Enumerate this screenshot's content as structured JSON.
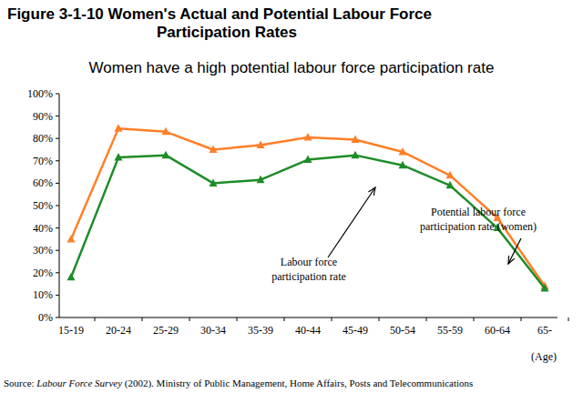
{
  "chart_data": {
    "type": "line",
    "title": [
      "Figure 3-1-10 Women's Actual and Potential Labour Force",
      "Participation Rates"
    ],
    "subtitle": "Women have a high potential labour force participation rate",
    "x_label": "(Age)",
    "categories": [
      "15-19",
      "20-24",
      "25-29",
      "30-34",
      "35-39",
      "40-44",
      "45-49",
      "50-54",
      "55-59",
      "60-64",
      "65-"
    ],
    "series": [
      {
        "name": "Potential labour force participation rate (women)",
        "color": "#ff7f27",
        "marker": "triangle",
        "values": [
          35,
          84.5,
          83,
          75,
          77,
          80.5,
          79.5,
          74,
          63.5,
          44.5,
          14
        ]
      },
      {
        "name": "Labour force participation rate",
        "color": "#1e8c28",
        "marker": "triangle",
        "values": [
          18,
          71.5,
          72.5,
          60,
          61.5,
          70.5,
          72.5,
          68,
          59,
          40,
          13
        ]
      }
    ],
    "annotations": [
      [
        "Potential labour force",
        "participation rate (women)"
      ],
      [
        "Labour force",
        "participation rate"
      ]
    ],
    "ylim": [
      0,
      100
    ],
    "yticks": [
      {
        "value": 0,
        "label": "0%"
      },
      {
        "value": 10,
        "label": "10%"
      },
      {
        "value": 20,
        "label": "20%"
      },
      {
        "value": 30,
        "label": "30%"
      },
      {
        "value": 40,
        "label": "40%"
      },
      {
        "value": 50,
        "label": "50%"
      },
      {
        "value": 60,
        "label": "60%"
      },
      {
        "value": 70,
        "label": "70%"
      },
      {
        "value": 80,
        "label": "80%"
      },
      {
        "value": 90,
        "label": "90%"
      },
      {
        "value": 100,
        "label": "100%"
      }
    ],
    "grid": false,
    "source": [
      "Source: ",
      "Labour Force Survey",
      " (2002).  Ministry of Public Management, Home Affairs, Posts and Telecommunications"
    ]
  }
}
